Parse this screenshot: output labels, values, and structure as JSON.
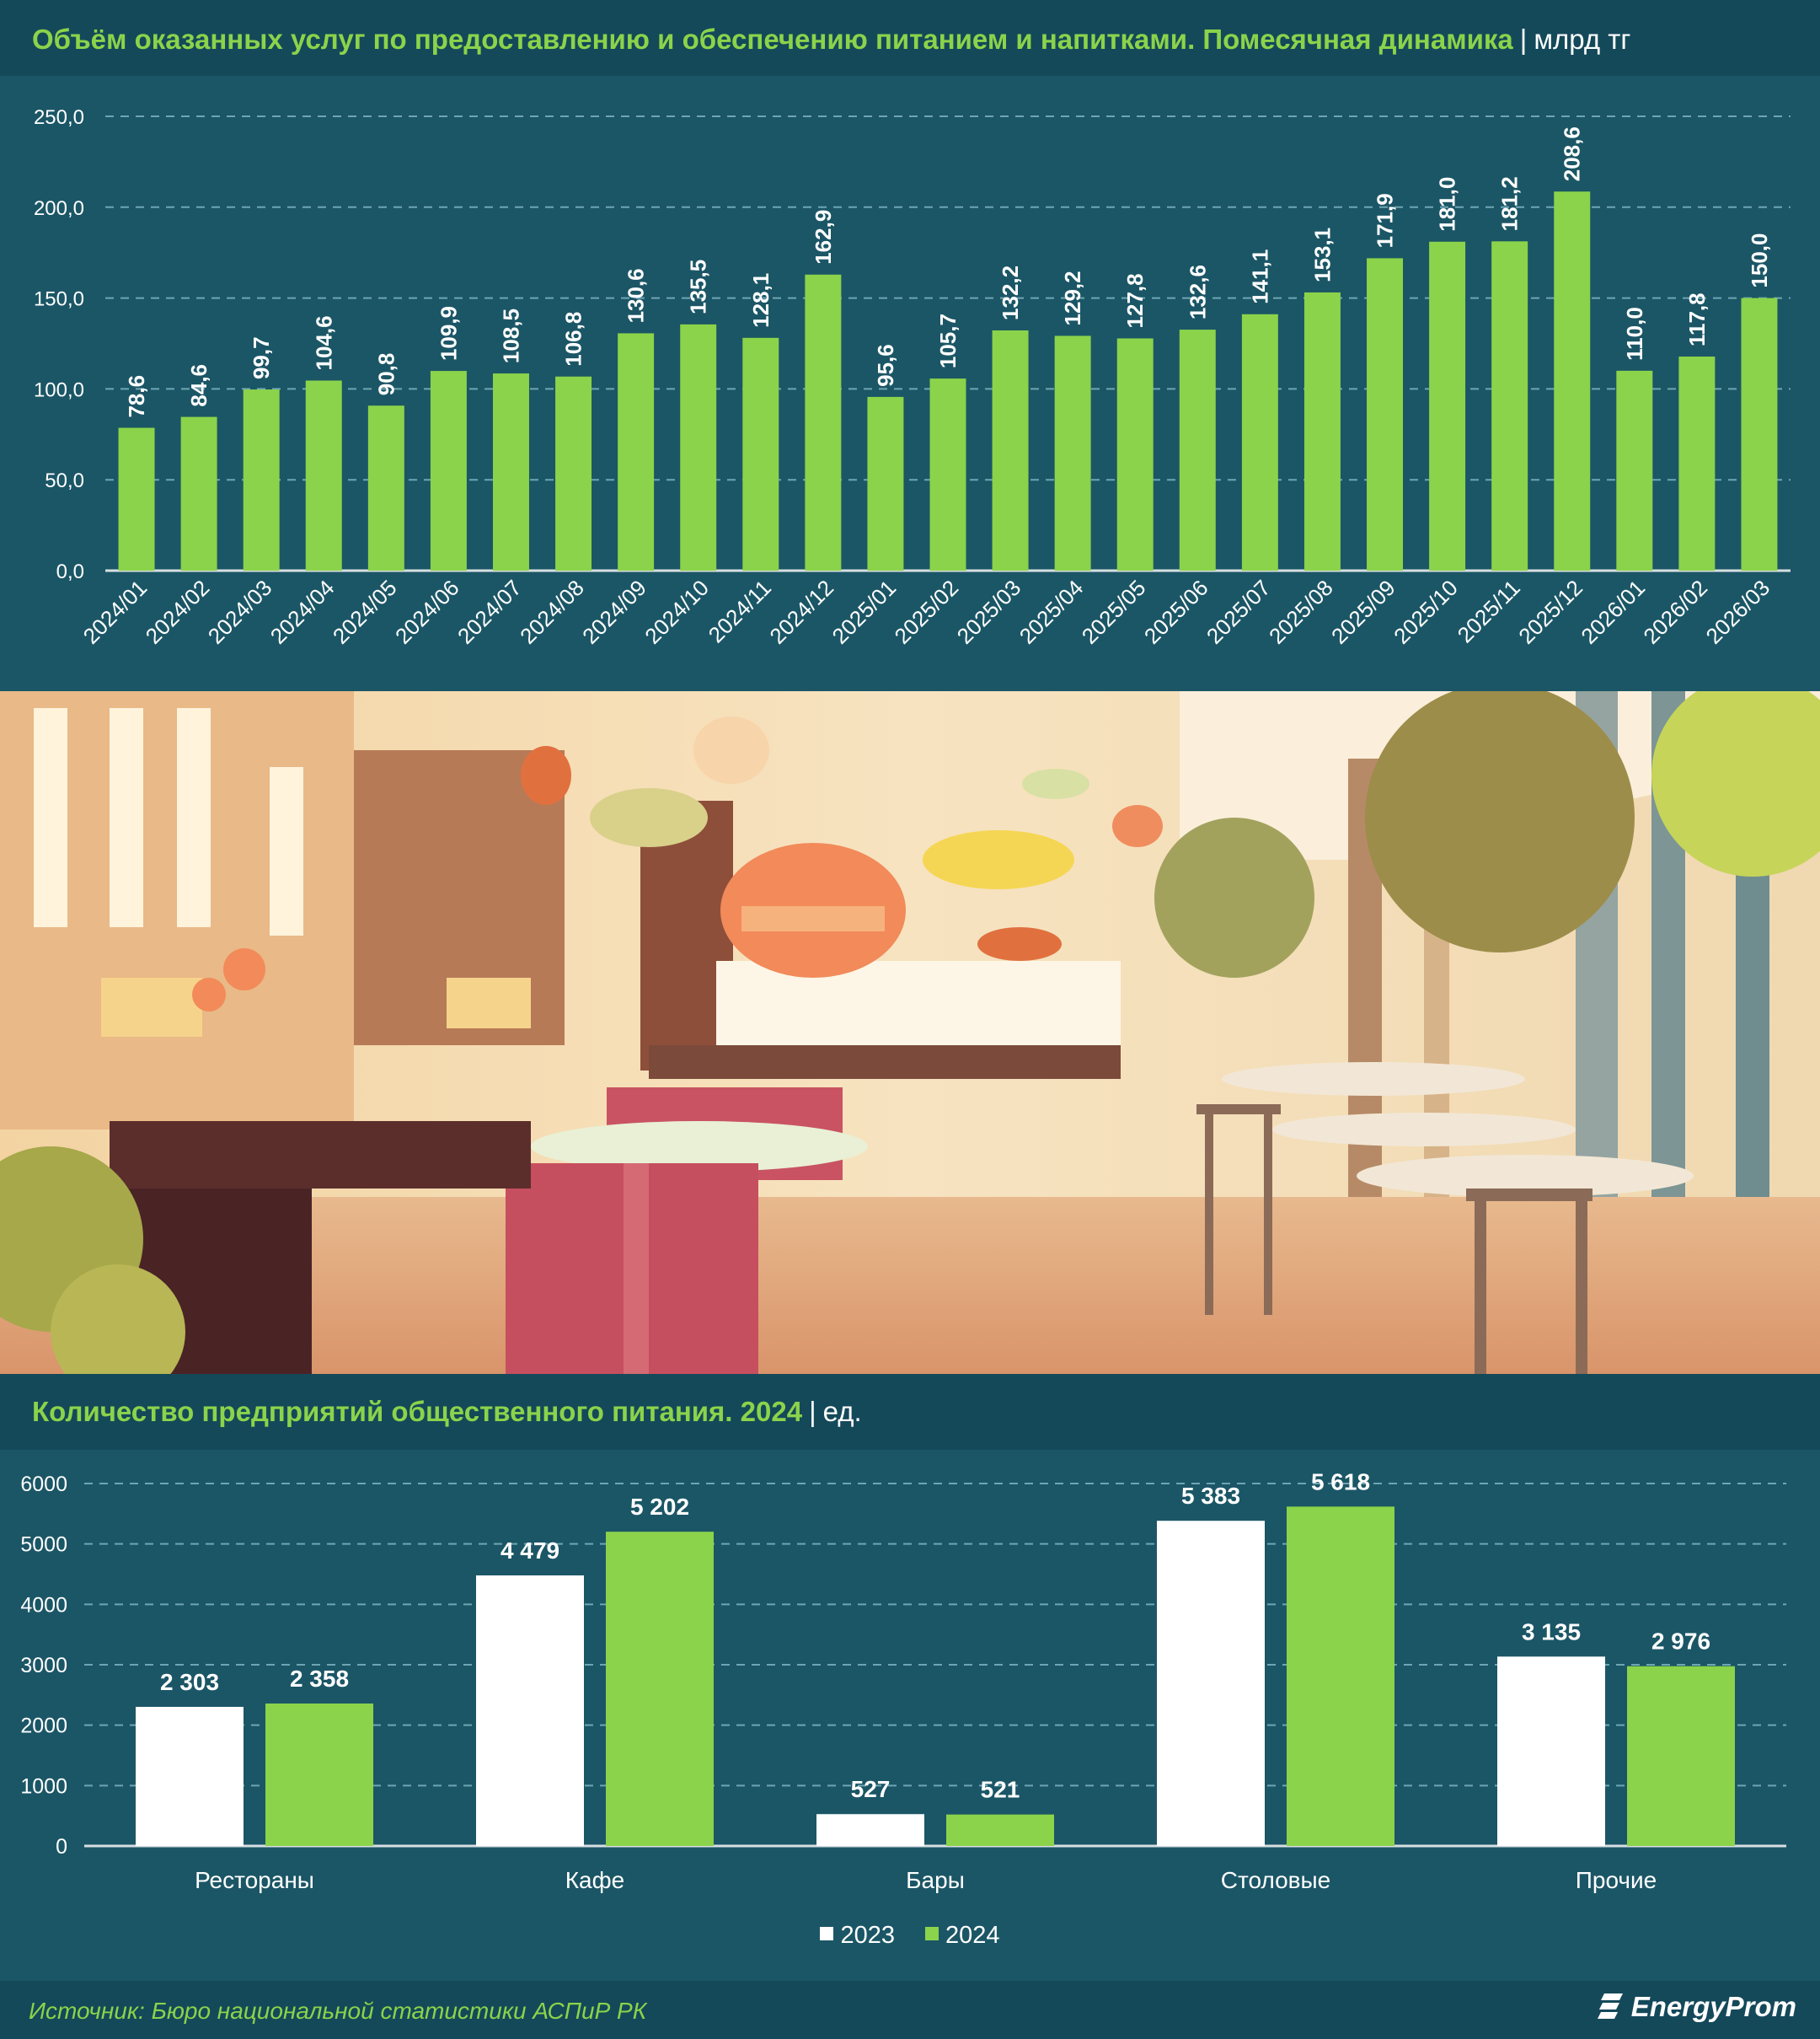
{
  "chart1": {
    "title": "Объём оказанных услуг по предоставлению и обеспечению питанием и напитками. Помесячная динамика",
    "unit": "млрд тг"
  },
  "chart2": {
    "title": "Количество предприятий общественного питания. 2024",
    "unit": "ед."
  },
  "legend": {
    "s2023": "2023",
    "s2024": "2024"
  },
  "footer": {
    "source": "Источник: Бюро национальной статистики АСПиР РК",
    "logo": "EnergyProm"
  },
  "colors": {
    "background": "#1b5666",
    "band": "#14495a",
    "green": "#8bd34a",
    "white": "#ffffff",
    "title_green": "#8bd34a"
  },
  "illustration": "cafe-interior-illustration",
  "chart_data": [
    {
      "type": "bar",
      "categories": [
        "2024/01",
        "2024/02",
        "2024/03",
        "2024/04",
        "2024/05",
        "2024/06",
        "2024/07",
        "2024/08",
        "2024/09",
        "2024/10",
        "2024/11",
        "2024/12",
        "2025/01",
        "2025/02",
        "2025/03",
        "2025/04",
        "2025/05",
        "2025/06",
        "2025/07",
        "2025/08",
        "2025/09",
        "2025/10",
        "2025/11",
        "2025/12",
        "2026/01",
        "2026/02",
        "2026/03"
      ],
      "values": [
        78.6,
        84.6,
        99.7,
        104.6,
        90.8,
        109.9,
        108.5,
        106.8,
        130.6,
        135.5,
        128.1,
        162.9,
        95.6,
        105.7,
        132.2,
        129.2,
        127.8,
        132.6,
        141.1,
        153.1,
        171.9,
        181.0,
        181.2,
        208.6,
        110.0,
        117.8,
        150.0
      ],
      "labels": [
        "78,6",
        "84,6",
        "99,7",
        "104,6",
        "90,8",
        "109,9",
        "108,5",
        "106,8",
        "130,6",
        "135,5",
        "128,1",
        "162,9",
        "95,6",
        "105,7",
        "132,2",
        "129,2",
        "127,8",
        "132,6",
        "141,1",
        "153,1",
        "171,9",
        "181,0",
        "181,2",
        "208,6",
        "110,0",
        "117,8",
        "150,0"
      ],
      "ylim": [
        0,
        250
      ],
      "yticks": [
        "0,0",
        "50,0",
        "100,0",
        "150,0",
        "200,0",
        "250,0"
      ],
      "grid": true,
      "color": "#8bd34a"
    },
    {
      "type": "bar",
      "categories": [
        "Рестораны",
        "Кафе",
        "Бары",
        "Столовые",
        "Прочие"
      ],
      "series": [
        {
          "name": "2023",
          "values": [
            2303,
            4479,
            527,
            5383,
            3135
          ],
          "labels": [
            "2 303",
            "4 479",
            "527",
            "5 383",
            "3 135"
          ],
          "color": "#ffffff"
        },
        {
          "name": "2024",
          "values": [
            2358,
            5202,
            521,
            5618,
            2976
          ],
          "labels": [
            "2 358",
            "5 202",
            "521",
            "5 618",
            "2 976"
          ],
          "color": "#8bd34a"
        }
      ],
      "ylim": [
        0,
        6000
      ],
      "yticks": [
        "0",
        "1000",
        "2000",
        "3000",
        "4000",
        "5000",
        "6000"
      ],
      "grid": true,
      "legend": "bottom-center"
    }
  ]
}
